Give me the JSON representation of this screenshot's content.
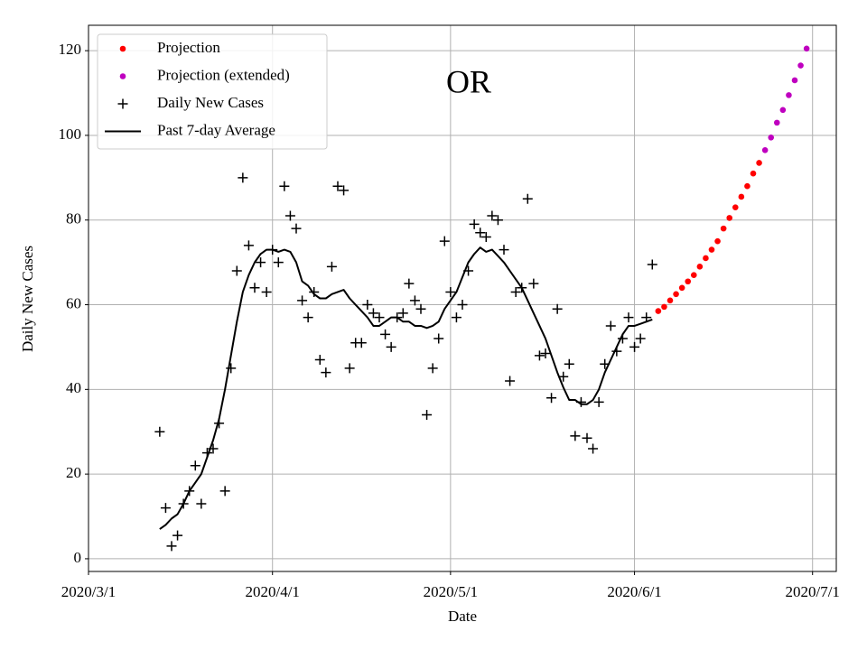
{
  "chart_data": {
    "type": "line",
    "title": "OR",
    "xlabel": "Date",
    "ylabel": "Daily New Cases",
    "xlim": [
      "2020/3/1",
      "2020/7/5"
    ],
    "xticks": [
      {
        "value": "2020/3/1",
        "label": "2020/3/1"
      },
      {
        "value": "2020/4/1",
        "label": "2020/4/1"
      },
      {
        "value": "2020/5/1",
        "label": "2020/5/1"
      },
      {
        "value": "2020/6/1",
        "label": "2020/6/1"
      },
      {
        "value": "2020/7/1",
        "label": "2020/7/1"
      }
    ],
    "ylim": [
      -3,
      126
    ],
    "yticks": [
      0,
      20,
      40,
      60,
      80,
      100,
      120
    ],
    "grid": true,
    "legend": "upper left",
    "series": [
      {
        "name": "Projection",
        "color": "#ff0000",
        "style": "dot",
        "x": [
          "2020/6/5",
          "2020/6/6",
          "2020/6/7",
          "2020/6/8",
          "2020/6/9",
          "2020/6/10",
          "2020/6/11",
          "2020/6/12",
          "2020/6/13",
          "2020/6/14",
          "2020/6/15",
          "2020/6/16",
          "2020/6/17",
          "2020/6/18",
          "2020/6/19",
          "2020/6/20",
          "2020/6/21",
          "2020/6/22"
        ],
        "values": [
          58.5,
          59.5,
          61,
          62.5,
          64,
          65.5,
          67,
          69,
          71,
          73,
          75,
          78,
          80.5,
          83,
          85.5,
          88,
          91,
          93.5
        ]
      },
      {
        "name": "Projection (extended)",
        "color": "#bf00bf",
        "style": "dot",
        "x": [
          "2020/6/23",
          "2020/6/24",
          "2020/6/25",
          "2020/6/26",
          "2020/6/27",
          "2020/6/28",
          "2020/6/29",
          "2020/6/30"
        ],
        "values": [
          96.5,
          99.5,
          103,
          106,
          109.5,
          113,
          116.5,
          120.5
        ]
      },
      {
        "name": "Daily New Cases",
        "color": "#000000",
        "style": "plus",
        "x": [
          "2020/3/13",
          "2020/3/14",
          "2020/3/15",
          "2020/3/16",
          "2020/3/17",
          "2020/3/18",
          "2020/3/19",
          "2020/3/20",
          "2020/3/21",
          "2020/3/22",
          "2020/3/23",
          "2020/3/24",
          "2020/3/25",
          "2020/3/26",
          "2020/3/27",
          "2020/3/28",
          "2020/3/29",
          "2020/3/30",
          "2020/3/31",
          "2020/4/1",
          "2020/4/2",
          "2020/4/3",
          "2020/4/4",
          "2020/4/5",
          "2020/4/6",
          "2020/4/7",
          "2020/4/8",
          "2020/4/9",
          "2020/4/10",
          "2020/4/11",
          "2020/4/12",
          "2020/4/13",
          "2020/4/14",
          "2020/4/15",
          "2020/4/16",
          "2020/4/17",
          "2020/4/18",
          "2020/4/19",
          "2020/4/20",
          "2020/4/21",
          "2020/4/22",
          "2020/4/23",
          "2020/4/24",
          "2020/4/25",
          "2020/4/26",
          "2020/4/27",
          "2020/4/28",
          "2020/4/29",
          "2020/4/30",
          "2020/5/1",
          "2020/5/2",
          "2020/5/3",
          "2020/5/4",
          "2020/5/5",
          "2020/5/6",
          "2020/5/7",
          "2020/5/8",
          "2020/5/9",
          "2020/5/10",
          "2020/5/11",
          "2020/5/12",
          "2020/5/13",
          "2020/5/14",
          "2020/5/15",
          "2020/5/16",
          "2020/5/17",
          "2020/5/18",
          "2020/5/19",
          "2020/5/20",
          "2020/5/21",
          "2020/5/22",
          "2020/5/23",
          "2020/5/24",
          "2020/5/25",
          "2020/5/26",
          "2020/5/27",
          "2020/5/28",
          "2020/5/29",
          "2020/5/30",
          "2020/5/31",
          "2020/6/1",
          "2020/6/2",
          "2020/6/3",
          "2020/6/4"
        ],
        "values": [
          30,
          12,
          3,
          5.5,
          13,
          16,
          22,
          13,
          25,
          26,
          32,
          16,
          45,
          68,
          90,
          74,
          64,
          70,
          63,
          73,
          70,
          88,
          81,
          78,
          61,
          57,
          63,
          47,
          44,
          69,
          88,
          87,
          45,
          51,
          51,
          60,
          58,
          57,
          53,
          50,
          57,
          58,
          65,
          61,
          59,
          34,
          45,
          52,
          75,
          63,
          57,
          60,
          68,
          79,
          77,
          76,
          81,
          80,
          73,
          42,
          63,
          64,
          85,
          65,
          48,
          48.5,
          38,
          59,
          43,
          46,
          29,
          37,
          28.5,
          26,
          37,
          46,
          55,
          49,
          52,
          57,
          50,
          52,
          57,
          69.5
        ]
      },
      {
        "name": "Past 7-day Average",
        "color": "#000000",
        "style": "line",
        "x": [
          "2020/3/13",
          "2020/3/14",
          "2020/3/15",
          "2020/3/16",
          "2020/3/17",
          "2020/3/18",
          "2020/3/19",
          "2020/3/20",
          "2020/3/21",
          "2020/3/22",
          "2020/3/23",
          "2020/3/24",
          "2020/3/25",
          "2020/3/26",
          "2020/3/27",
          "2020/3/28",
          "2020/3/29",
          "2020/3/30",
          "2020/3/31",
          "2020/4/1",
          "2020/4/2",
          "2020/4/3",
          "2020/4/4",
          "2020/4/5",
          "2020/4/6",
          "2020/4/7",
          "2020/4/8",
          "2020/4/9",
          "2020/4/10",
          "2020/4/11",
          "2020/4/12",
          "2020/4/13",
          "2020/4/14",
          "2020/4/15",
          "2020/4/16",
          "2020/4/17",
          "2020/4/18",
          "2020/4/19",
          "2020/4/20",
          "2020/4/21",
          "2020/4/22",
          "2020/4/23",
          "2020/4/24",
          "2020/4/25",
          "2020/4/26",
          "2020/4/27",
          "2020/4/28",
          "2020/4/29",
          "2020/4/30",
          "2020/5/1",
          "2020/5/2",
          "2020/5/3",
          "2020/5/4",
          "2020/5/5",
          "2020/5/6",
          "2020/5/7",
          "2020/5/8",
          "2020/5/9",
          "2020/5/10",
          "2020/5/11",
          "2020/5/12",
          "2020/5/13",
          "2020/5/14",
          "2020/5/15",
          "2020/5/16",
          "2020/5/17",
          "2020/5/18",
          "2020/5/19",
          "2020/5/20",
          "2020/5/21",
          "2020/5/22",
          "2020/5/23",
          "2020/5/24",
          "2020/5/25",
          "2020/5/26",
          "2020/5/27",
          "2020/5/28",
          "2020/5/29",
          "2020/5/30",
          "2020/5/31",
          "2020/6/1",
          "2020/6/2",
          "2020/6/3",
          "2020/6/4"
        ],
        "values": [
          7,
          8,
          9.5,
          10.5,
          13,
          16,
          18,
          20,
          24,
          28,
          33,
          40,
          48,
          56,
          63,
          67,
          70,
          72,
          73,
          73,
          72.5,
          73,
          72.5,
          70,
          65.5,
          64.5,
          62.5,
          61.5,
          61.5,
          62.5,
          63,
          63.5,
          61.5,
          60,
          58.5,
          57,
          55,
          55,
          56,
          57,
          57,
          56,
          56,
          55,
          55,
          54.5,
          55,
          56,
          59,
          61,
          63,
          66.5,
          70,
          72,
          73.5,
          72.5,
          73,
          71.5,
          70,
          68,
          66,
          64,
          61,
          58,
          55,
          52,
          48,
          44,
          40.5,
          37.5,
          37.5,
          36.5,
          36.5,
          37.5,
          40,
          44,
          47,
          50,
          53,
          55,
          55,
          55.5,
          56,
          56.5
        ]
      }
    ]
  }
}
